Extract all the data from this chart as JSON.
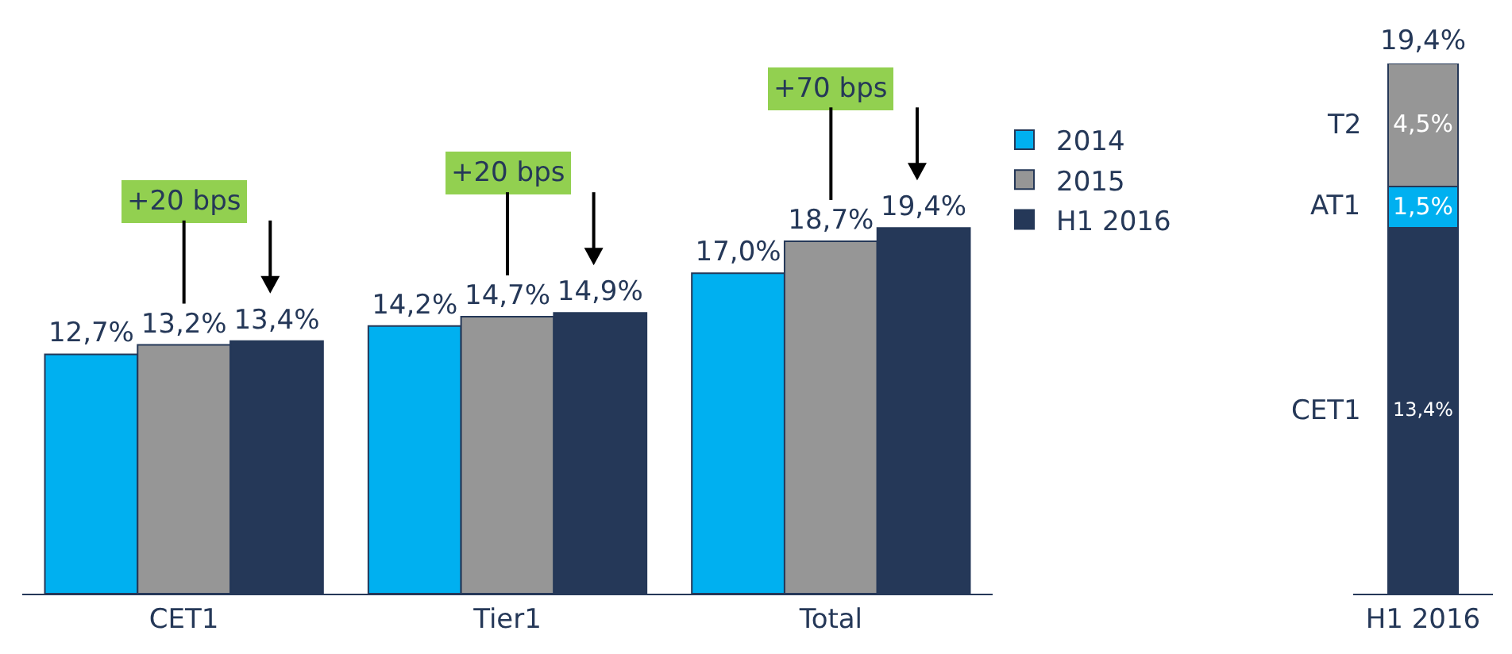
{
  "chart_data": [
    {
      "type": "bar",
      "categories": [
        "CET1",
        "Tier1",
        "Total"
      ],
      "legend": "right",
      "series": [
        {
          "name": "2014",
          "color": "#00b0f0",
          "values": [
            12.7,
            14.2,
            17.0
          ],
          "value_labels": [
            "12,7%",
            "14,2%",
            "17,0%"
          ]
        },
        {
          "name": "2015",
          "color": "#969696",
          "values": [
            13.2,
            14.7,
            18.7
          ],
          "value_labels": [
            "13,2%",
            "14,7%",
            "18,7%"
          ]
        },
        {
          "name": "H1 2016",
          "color": "#253858",
          "values": [
            13.4,
            14.9,
            19.4
          ],
          "value_labels": [
            "13,4%",
            "14,9%",
            "19,4%"
          ]
        }
      ],
      "annotations": [
        "+20 bps",
        "+20 bps",
        "+70 bps"
      ]
    },
    {
      "type": "bar",
      "categories": [
        "H1 2016"
      ],
      "stacked": true,
      "legend": false,
      "totals": [
        "19,4%"
      ],
      "series": [
        {
          "name": "CET1",
          "color": "#253858",
          "values": [
            13.4
          ],
          "value_labels": [
            "13,4%"
          ]
        },
        {
          "name": "AT1",
          "color": "#00b0f0",
          "values": [
            1.5
          ],
          "value_labels": [
            "1,5%"
          ]
        },
        {
          "name": "T2",
          "color": "#969696",
          "values": [
            4.5
          ],
          "value_labels": [
            "4,5%"
          ]
        }
      ]
    }
  ]
}
